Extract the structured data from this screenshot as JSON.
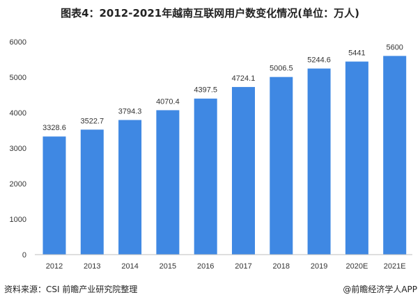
{
  "chart_data": {
    "type": "bar",
    "title": "图表4：2012-2021年越南互联网用户数变化情况(单位：万人)",
    "xlabel": "",
    "ylabel": "",
    "categories": [
      "2012",
      "2013",
      "2014",
      "2015",
      "2016",
      "2017",
      "2018",
      "2019",
      "2020E",
      "2021E"
    ],
    "values": [
      3328.6,
      3522.7,
      3794.3,
      4070.4,
      4397.5,
      4724.1,
      5006.5,
      5244.6,
      5441,
      5600
    ],
    "value_labels": [
      "3328.6",
      "3522.7",
      "3794.3",
      "4070.4",
      "4397.5",
      "4724.1",
      "5006.5",
      "5244.6",
      "5441",
      "5600"
    ],
    "ylim": [
      0,
      6000
    ],
    "yticks": [
      "0",
      "1000",
      "2000",
      "3000",
      "4000",
      "5000",
      "6000"
    ],
    "grid": false,
    "bar_color": "#3f88e3"
  },
  "footer": {
    "source": "资料来源：CSI 前瞻产业研究院整理",
    "brand": "@前瞻经济学人APP"
  }
}
